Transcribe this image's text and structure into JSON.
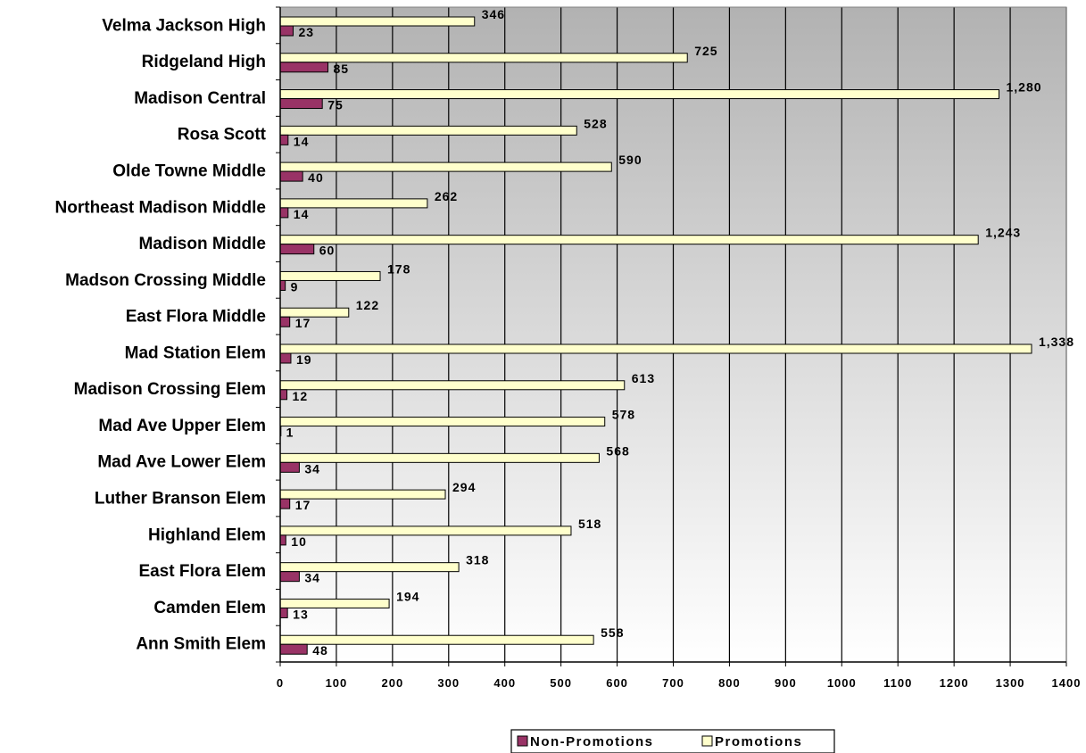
{
  "chart_data": {
    "type": "bar",
    "orientation": "horizontal",
    "categories": [
      "Velma Jackson High",
      "Ridgeland High",
      "Madison Central",
      "Rosa Scott",
      "Olde Towne Middle",
      "Northeast Madison Middle",
      "Madison Middle",
      "Madson Crossing Middle",
      "East Flora Middle",
      "Mad Station Elem",
      "Madison Crossing Elem",
      "Mad Ave Upper Elem",
      "Mad Ave Lower Elem",
      "Luther Branson Elem",
      "Highland Elem",
      "East Flora Elem",
      "Camden Elem",
      "Ann Smith Elem"
    ],
    "series": [
      {
        "name": "Non-Promotions",
        "color": "#993366",
        "values": [
          23,
          85,
          75,
          14,
          40,
          14,
          60,
          9,
          17,
          19,
          12,
          1,
          34,
          17,
          10,
          34,
          13,
          48
        ],
        "labels": [
          "23",
          "85",
          "75",
          "14",
          "40",
          "14",
          "60",
          "9",
          "17",
          "19",
          "12",
          "1",
          "34",
          "17",
          "10",
          "34",
          "13",
          "48"
        ]
      },
      {
        "name": "Promotions",
        "color": "#FFFFCC",
        "values": [
          346,
          725,
          1280,
          528,
          590,
          262,
          1243,
          178,
          122,
          1338,
          613,
          578,
          568,
          294,
          518,
          318,
          194,
          558
        ],
        "labels": [
          "346",
          "725",
          "1,280",
          "528",
          "590",
          "262",
          "1,243",
          "178",
          "122",
          "1,338",
          "613",
          "578",
          "568",
          "294",
          "518",
          "318",
          "194",
          "558"
        ]
      }
    ],
    "xlim": [
      0,
      1400
    ],
    "xticks": [
      "0",
      "100",
      "200",
      "300",
      "400",
      "500",
      "600",
      "700",
      "800",
      "900",
      "1000",
      "1100",
      "1200",
      "1300",
      "1400"
    ],
    "grid": true,
    "legend_position": "bottom",
    "title": "",
    "xlabel": "",
    "ylabel": ""
  }
}
